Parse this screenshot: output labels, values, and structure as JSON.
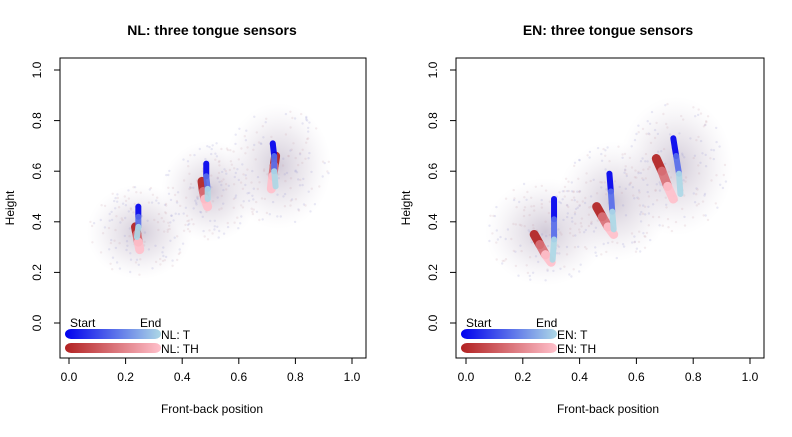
{
  "chart_data": [
    {
      "type": "scatter",
      "title": "NL: three tongue sensors",
      "xlabel": "Front-back position",
      "ylabel": "Height",
      "xlim": [
        0,
        1
      ],
      "ylim": [
        -0.15,
        1.05
      ],
      "xticks": [
        "0.0",
        "0.2",
        "0.4",
        "0.6",
        "0.8",
        "1.0"
      ],
      "yticks": [
        "0.0",
        "0.2",
        "0.4",
        "0.6",
        "0.8",
        "1.0"
      ],
      "legend": {
        "start_label": "Start",
        "end_label": "End",
        "entries": [
          {
            "name": "NL: T",
            "color_start": "#0000ee",
            "color_end": "#add8e6"
          },
          {
            "name": "NL: TH",
            "color_start": "#b22222",
            "color_end": "#ffc0cb"
          }
        ]
      },
      "clouds": [
        {
          "cx": 0.25,
          "cy": 0.36,
          "rx": 0.15,
          "ry": 0.15
        },
        {
          "cx": 0.5,
          "cy": 0.52,
          "rx": 0.14,
          "ry": 0.16
        },
        {
          "cx": 0.74,
          "cy": 0.62,
          "rx": 0.15,
          "ry": 0.2
        }
      ],
      "series": [
        {
          "name": "NL: T",
          "sensors": [
            [
              [
                0.245,
                0.46
              ],
              [
                0.245,
                0.42
              ],
              [
                0.245,
                0.38
              ],
              [
                0.24,
                0.34
              ]
            ],
            [
              [
                0.485,
                0.63
              ],
              [
                0.485,
                0.58
              ],
              [
                0.49,
                0.53
              ],
              [
                0.49,
                0.49
              ]
            ],
            [
              [
                0.72,
                0.71
              ],
              [
                0.725,
                0.66
              ],
              [
                0.725,
                0.6
              ],
              [
                0.73,
                0.54
              ]
            ]
          ]
        },
        {
          "name": "NL: TH",
          "sensors": [
            [
              [
                0.235,
                0.38
              ],
              [
                0.24,
                0.35
              ],
              [
                0.245,
                0.32
              ],
              [
                0.25,
                0.29
              ]
            ],
            [
              [
                0.47,
                0.56
              ],
              [
                0.475,
                0.52
              ],
              [
                0.48,
                0.49
              ],
              [
                0.49,
                0.46
              ]
            ],
            [
              [
                0.73,
                0.66
              ],
              [
                0.725,
                0.62
              ],
              [
                0.72,
                0.58
              ],
              [
                0.715,
                0.53
              ]
            ]
          ]
        }
      ]
    },
    {
      "type": "scatter",
      "title": "EN: three tongue sensors",
      "xlabel": "Front-back position",
      "ylabel": "Height",
      "xlim": [
        0,
        1
      ],
      "ylim": [
        -0.15,
        1.05
      ],
      "xticks": [
        "0.0",
        "0.2",
        "0.4",
        "0.6",
        "0.8",
        "1.0"
      ],
      "yticks": [
        "0.0",
        "0.2",
        "0.4",
        "0.6",
        "0.8",
        "1.0"
      ],
      "legend": {
        "start_label": "Start",
        "end_label": "End",
        "entries": [
          {
            "name": "EN: T",
            "color_start": "#0000ee",
            "color_end": "#add8e6"
          },
          {
            "name": "EN: TH",
            "color_start": "#b22222",
            "color_end": "#ffc0cb"
          }
        ]
      },
      "clouds": [
        {
          "cx": 0.28,
          "cy": 0.36,
          "rx": 0.17,
          "ry": 0.17
        },
        {
          "cx": 0.52,
          "cy": 0.48,
          "rx": 0.16,
          "ry": 0.19
        },
        {
          "cx": 0.74,
          "cy": 0.62,
          "rx": 0.16,
          "ry": 0.22
        }
      ],
      "series": [
        {
          "name": "EN: T",
          "sensors": [
            [
              [
                0.31,
                0.49
              ],
              [
                0.31,
                0.41
              ],
              [
                0.31,
                0.33
              ],
              [
                0.305,
                0.25
              ]
            ],
            [
              [
                0.505,
                0.59
              ],
              [
                0.51,
                0.52
              ],
              [
                0.515,
                0.44
              ],
              [
                0.52,
                0.37
              ]
            ],
            [
              [
                0.73,
                0.73
              ],
              [
                0.74,
                0.66
              ],
              [
                0.75,
                0.59
              ],
              [
                0.755,
                0.51
              ]
            ]
          ]
        },
        {
          "name": "EN: TH",
          "sensors": [
            [
              [
                0.24,
                0.35
              ],
              [
                0.26,
                0.31
              ],
              [
                0.28,
                0.27
              ],
              [
                0.3,
                0.24
              ]
            ],
            [
              [
                0.46,
                0.46
              ],
              [
                0.48,
                0.42
              ],
              [
                0.5,
                0.38
              ],
              [
                0.52,
                0.35
              ]
            ],
            [
              [
                0.67,
                0.65
              ],
              [
                0.69,
                0.6
              ],
              [
                0.71,
                0.54
              ],
              [
                0.73,
                0.49
              ]
            ]
          ]
        }
      ]
    }
  ]
}
